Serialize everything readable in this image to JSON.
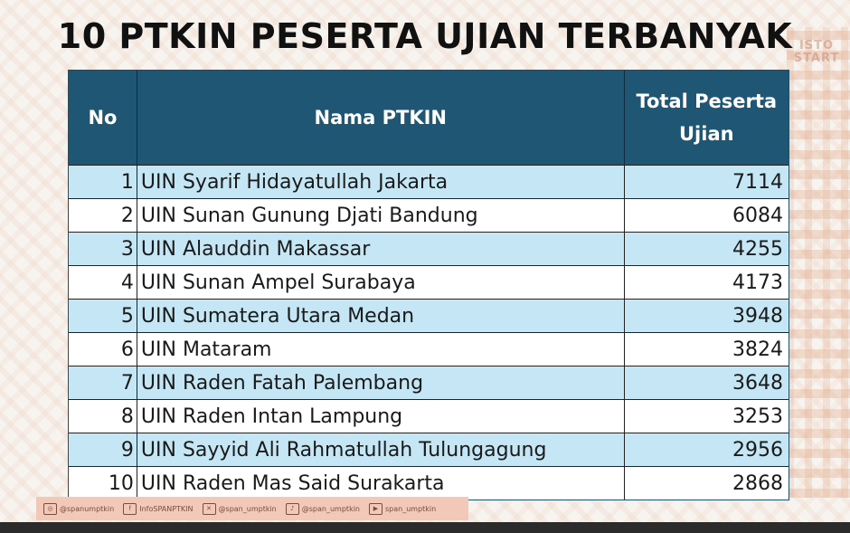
{
  "title": "10 PTKIN PESERTA UJIAN TERBANYAK",
  "logo_text": "ISTO START",
  "table": {
    "headers": {
      "no": "No",
      "name": "Nama PTKIN",
      "total": "Total Peserta Ujian"
    },
    "rows": [
      {
        "no": "1",
        "name": "UIN Syarif Hidayatullah Jakarta",
        "total": "7114"
      },
      {
        "no": "2",
        "name": "UIN Sunan Gunung Djati Bandung",
        "total": "6084"
      },
      {
        "no": "3",
        "name": "UIN Alauddin Makassar",
        "total": "4255"
      },
      {
        "no": "4",
        "name": "UIN Sunan Ampel Surabaya",
        "total": "4173"
      },
      {
        "no": "5",
        "name": "UIN Sumatera Utara Medan",
        "total": "3948"
      },
      {
        "no": "6",
        "name": "UIN Mataram",
        "total": "3824"
      },
      {
        "no": "7",
        "name": "UIN Raden Fatah Palembang",
        "total": "3648"
      },
      {
        "no": "8",
        "name": "UIN Raden Intan Lampung",
        "total": "3253"
      },
      {
        "no": "9",
        "name": "UIN Sayyid Ali Rahmatullah Tulungagung",
        "total": "2956"
      },
      {
        "no": "10",
        "name": "UIN Raden Mas Said Surakarta",
        "total": "2868"
      }
    ]
  },
  "footer": {
    "items": [
      {
        "icon": "instagram-icon",
        "glyph": "◎",
        "text": "@spanumptkin"
      },
      {
        "icon": "facebook-icon",
        "glyph": "f",
        "text": "InfoSPANPTKIN"
      },
      {
        "icon": "x-icon",
        "glyph": "✕",
        "text": "@span_umptkin"
      },
      {
        "icon": "tiktok-icon",
        "glyph": "♪",
        "text": "@span_umptkin"
      },
      {
        "icon": "youtube-icon",
        "glyph": "▶",
        "text": "span_umptkin"
      }
    ]
  },
  "colors": {
    "header_bg": "#1f5673",
    "row_alt": "#c5e7f5",
    "footer_bg": "#f2c8b8"
  }
}
